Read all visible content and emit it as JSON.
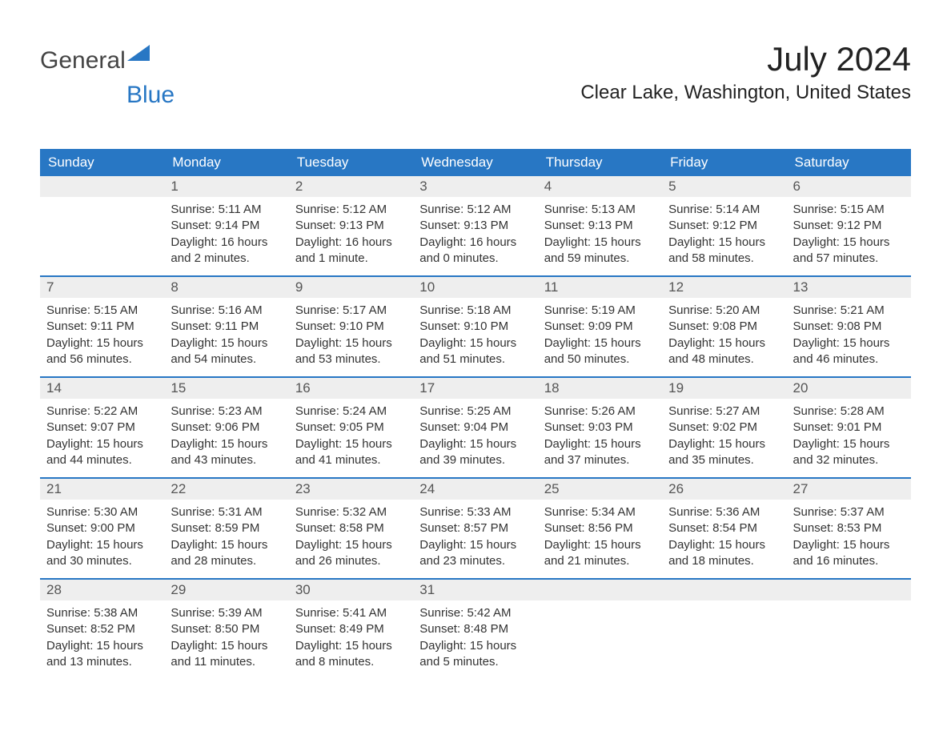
{
  "logo": {
    "text1": "General",
    "text2": "Blue"
  },
  "title": "July 2024",
  "location": "Clear Lake, Washington, United States",
  "colors": {
    "header_bg": "#2877c4",
    "header_text": "#ffffff",
    "daynum_bg": "#eeeeee",
    "daynum_text": "#555555",
    "body_text": "#333333",
    "accent": "#2877c4"
  },
  "weekdays": [
    "Sunday",
    "Monday",
    "Tuesday",
    "Wednesday",
    "Thursday",
    "Friday",
    "Saturday"
  ],
  "weeks": [
    [
      {
        "n": "",
        "sunrise": "",
        "sunset": "",
        "daylight": ""
      },
      {
        "n": "1",
        "sunrise": "Sunrise: 5:11 AM",
        "sunset": "Sunset: 9:14 PM",
        "daylight": "Daylight: 16 hours and 2 minutes."
      },
      {
        "n": "2",
        "sunrise": "Sunrise: 5:12 AM",
        "sunset": "Sunset: 9:13 PM",
        "daylight": "Daylight: 16 hours and 1 minute."
      },
      {
        "n": "3",
        "sunrise": "Sunrise: 5:12 AM",
        "sunset": "Sunset: 9:13 PM",
        "daylight": "Daylight: 16 hours and 0 minutes."
      },
      {
        "n": "4",
        "sunrise": "Sunrise: 5:13 AM",
        "sunset": "Sunset: 9:13 PM",
        "daylight": "Daylight: 15 hours and 59 minutes."
      },
      {
        "n": "5",
        "sunrise": "Sunrise: 5:14 AM",
        "sunset": "Sunset: 9:12 PM",
        "daylight": "Daylight: 15 hours and 58 minutes."
      },
      {
        "n": "6",
        "sunrise": "Sunrise: 5:15 AM",
        "sunset": "Sunset: 9:12 PM",
        "daylight": "Daylight: 15 hours and 57 minutes."
      }
    ],
    [
      {
        "n": "7",
        "sunrise": "Sunrise: 5:15 AM",
        "sunset": "Sunset: 9:11 PM",
        "daylight": "Daylight: 15 hours and 56 minutes."
      },
      {
        "n": "8",
        "sunrise": "Sunrise: 5:16 AM",
        "sunset": "Sunset: 9:11 PM",
        "daylight": "Daylight: 15 hours and 54 minutes."
      },
      {
        "n": "9",
        "sunrise": "Sunrise: 5:17 AM",
        "sunset": "Sunset: 9:10 PM",
        "daylight": "Daylight: 15 hours and 53 minutes."
      },
      {
        "n": "10",
        "sunrise": "Sunrise: 5:18 AM",
        "sunset": "Sunset: 9:10 PM",
        "daylight": "Daylight: 15 hours and 51 minutes."
      },
      {
        "n": "11",
        "sunrise": "Sunrise: 5:19 AM",
        "sunset": "Sunset: 9:09 PM",
        "daylight": "Daylight: 15 hours and 50 minutes."
      },
      {
        "n": "12",
        "sunrise": "Sunrise: 5:20 AM",
        "sunset": "Sunset: 9:08 PM",
        "daylight": "Daylight: 15 hours and 48 minutes."
      },
      {
        "n": "13",
        "sunrise": "Sunrise: 5:21 AM",
        "sunset": "Sunset: 9:08 PM",
        "daylight": "Daylight: 15 hours and 46 minutes."
      }
    ],
    [
      {
        "n": "14",
        "sunrise": "Sunrise: 5:22 AM",
        "sunset": "Sunset: 9:07 PM",
        "daylight": "Daylight: 15 hours and 44 minutes."
      },
      {
        "n": "15",
        "sunrise": "Sunrise: 5:23 AM",
        "sunset": "Sunset: 9:06 PM",
        "daylight": "Daylight: 15 hours and 43 minutes."
      },
      {
        "n": "16",
        "sunrise": "Sunrise: 5:24 AM",
        "sunset": "Sunset: 9:05 PM",
        "daylight": "Daylight: 15 hours and 41 minutes."
      },
      {
        "n": "17",
        "sunrise": "Sunrise: 5:25 AM",
        "sunset": "Sunset: 9:04 PM",
        "daylight": "Daylight: 15 hours and 39 minutes."
      },
      {
        "n": "18",
        "sunrise": "Sunrise: 5:26 AM",
        "sunset": "Sunset: 9:03 PM",
        "daylight": "Daylight: 15 hours and 37 minutes."
      },
      {
        "n": "19",
        "sunrise": "Sunrise: 5:27 AM",
        "sunset": "Sunset: 9:02 PM",
        "daylight": "Daylight: 15 hours and 35 minutes."
      },
      {
        "n": "20",
        "sunrise": "Sunrise: 5:28 AM",
        "sunset": "Sunset: 9:01 PM",
        "daylight": "Daylight: 15 hours and 32 minutes."
      }
    ],
    [
      {
        "n": "21",
        "sunrise": "Sunrise: 5:30 AM",
        "sunset": "Sunset: 9:00 PM",
        "daylight": "Daylight: 15 hours and 30 minutes."
      },
      {
        "n": "22",
        "sunrise": "Sunrise: 5:31 AM",
        "sunset": "Sunset: 8:59 PM",
        "daylight": "Daylight: 15 hours and 28 minutes."
      },
      {
        "n": "23",
        "sunrise": "Sunrise: 5:32 AM",
        "sunset": "Sunset: 8:58 PM",
        "daylight": "Daylight: 15 hours and 26 minutes."
      },
      {
        "n": "24",
        "sunrise": "Sunrise: 5:33 AM",
        "sunset": "Sunset: 8:57 PM",
        "daylight": "Daylight: 15 hours and 23 minutes."
      },
      {
        "n": "25",
        "sunrise": "Sunrise: 5:34 AM",
        "sunset": "Sunset: 8:56 PM",
        "daylight": "Daylight: 15 hours and 21 minutes."
      },
      {
        "n": "26",
        "sunrise": "Sunrise: 5:36 AM",
        "sunset": "Sunset: 8:54 PM",
        "daylight": "Daylight: 15 hours and 18 minutes."
      },
      {
        "n": "27",
        "sunrise": "Sunrise: 5:37 AM",
        "sunset": "Sunset: 8:53 PM",
        "daylight": "Daylight: 15 hours and 16 minutes."
      }
    ],
    [
      {
        "n": "28",
        "sunrise": "Sunrise: 5:38 AM",
        "sunset": "Sunset: 8:52 PM",
        "daylight": "Daylight: 15 hours and 13 minutes."
      },
      {
        "n": "29",
        "sunrise": "Sunrise: 5:39 AM",
        "sunset": "Sunset: 8:50 PM",
        "daylight": "Daylight: 15 hours and 11 minutes."
      },
      {
        "n": "30",
        "sunrise": "Sunrise: 5:41 AM",
        "sunset": "Sunset: 8:49 PM",
        "daylight": "Daylight: 15 hours and 8 minutes."
      },
      {
        "n": "31",
        "sunrise": "Sunrise: 5:42 AM",
        "sunset": "Sunset: 8:48 PM",
        "daylight": "Daylight: 15 hours and 5 minutes."
      },
      {
        "n": "",
        "sunrise": "",
        "sunset": "",
        "daylight": ""
      },
      {
        "n": "",
        "sunrise": "",
        "sunset": "",
        "daylight": ""
      },
      {
        "n": "",
        "sunrise": "",
        "sunset": "",
        "daylight": ""
      }
    ]
  ]
}
